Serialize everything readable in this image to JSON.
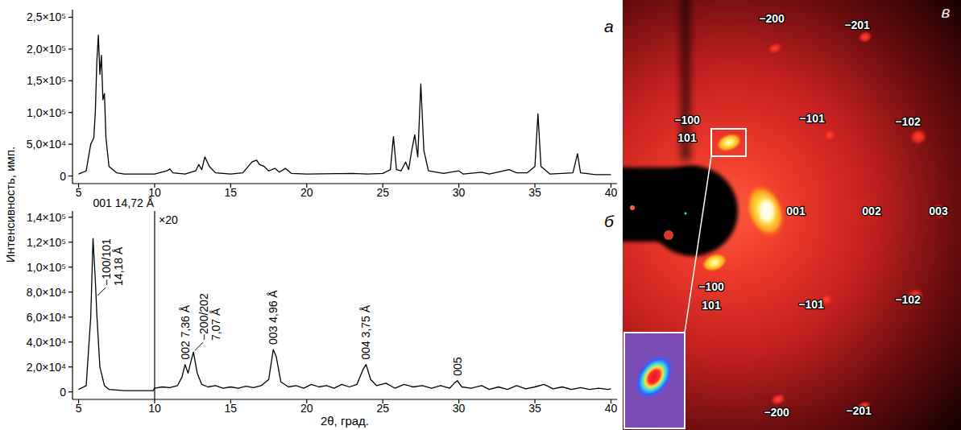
{
  "chart_data": [
    {
      "type": "line",
      "panel_label": "а",
      "color": "#000000",
      "x": [
        5.0,
        5.5,
        5.8,
        6.0,
        6.1,
        6.2,
        6.3,
        6.4,
        6.5,
        6.6,
        6.7,
        6.8,
        7.0,
        7.5,
        8.0,
        10.0,
        10.8,
        11.0,
        11.2,
        12.0,
        12.7,
        12.9,
        13.1,
        13.3,
        13.6,
        14.0,
        15.0,
        15.8,
        16.4,
        16.7,
        16.9,
        17.2,
        17.5,
        17.9,
        18.2,
        18.6,
        19.0,
        20.0,
        23.0,
        24.0,
        25.0,
        25.5,
        25.7,
        25.9,
        26.2,
        26.5,
        26.7,
        26.9,
        27.1,
        27.3,
        27.5,
        27.7,
        28.0,
        29.0,
        30.0,
        30.3,
        31.5,
        32.0,
        33.3,
        33.8,
        34.5,
        35.0,
        35.2,
        35.4,
        36.0,
        37.5,
        37.8,
        38.0,
        39.0,
        40.0
      ],
      "values": [
        3000,
        8000,
        50000,
        60000,
        100000,
        180000,
        222000,
        160000,
        190000,
        120000,
        130000,
        60000,
        15000,
        5000,
        3000,
        3000,
        8000,
        11000,
        5000,
        3000,
        8000,
        18000,
        10000,
        30000,
        15000,
        5000,
        3000,
        5000,
        22000,
        25000,
        18000,
        15000,
        8000,
        12000,
        6000,
        12000,
        4000,
        3000,
        4000,
        3000,
        4000,
        10000,
        62000,
        10000,
        8000,
        22000,
        10000,
        40000,
        65000,
        30000,
        145000,
        40000,
        8000,
        4000,
        8000,
        3000,
        6000,
        3000,
        10000,
        5000,
        5000,
        15000,
        98000,
        15000,
        3000,
        5000,
        35000,
        5000,
        2000,
        2000
      ],
      "xlim": [
        4.6,
        40.4
      ],
      "xticks": [
        5,
        10,
        15,
        20,
        25,
        30,
        35,
        40
      ],
      "ylim": [
        -12000,
        262000
      ],
      "yticks": [
        0,
        {
          "value": 50000,
          "label": "5,0×10⁴"
        },
        {
          "value": 100000,
          "label": "1,0×10⁵"
        },
        {
          "value": 150000,
          "label": "1,5×10⁵"
        },
        {
          "value": 200000,
          "label": "2,0×10⁵"
        },
        {
          "value": 250000,
          "label": "2,5×10⁵"
        }
      ]
    },
    {
      "type": "line",
      "panel_label": "б",
      "color": "#000000",
      "x_label": "2θ, град.",
      "x": [
        5.0,
        5.5,
        5.8,
        5.95,
        6.1,
        6.2,
        6.4,
        6.7,
        7.0,
        8.0,
        9.9,
        10.0,
        10.5,
        11.0,
        11.5,
        11.8,
        12.0,
        12.2,
        12.4,
        12.55,
        12.8,
        13.1,
        13.5,
        14.0,
        14.5,
        15.0,
        15.5,
        16.0,
        16.5,
        17.0,
        17.5,
        17.8,
        18.0,
        18.3,
        18.8,
        19.3,
        19.8,
        20.3,
        20.8,
        21.3,
        21.8,
        22.3,
        22.8,
        23.3,
        23.7,
        23.9,
        24.2,
        24.6,
        25.2,
        25.8,
        26.4,
        27.0,
        27.6,
        28.2,
        28.8,
        29.4,
        29.7,
        29.9,
        30.2,
        30.8,
        31.5,
        32.0,
        32.6,
        33.2,
        33.8,
        34.4,
        35.0,
        35.6,
        36.2,
        36.8,
        37.4,
        38.0,
        38.6,
        39.2,
        39.8,
        40.0
      ],
      "values": [
        2000,
        5000,
        60000,
        123000,
        90000,
        62000,
        20000,
        5000,
        2000,
        1000,
        1000,
        3000,
        4000,
        3500,
        5000,
        12000,
        22000,
        15000,
        25000,
        32000,
        15000,
        6000,
        4000,
        5000,
        3000,
        4000,
        3000,
        4500,
        3500,
        5000,
        10000,
        34000,
        28000,
        8000,
        4000,
        5000,
        3000,
        6000,
        4000,
        5000,
        3000,
        6000,
        4000,
        6000,
        18000,
        22000,
        10000,
        5000,
        7000,
        3000,
        6000,
        4000,
        5000,
        3000,
        5000,
        3000,
        7000,
        9000,
        4000,
        3000,
        5000,
        2000,
        4000,
        2000,
        5000,
        2500,
        4000,
        6000,
        2500,
        4000,
        2000,
        3500,
        2000,
        3000,
        2000,
        2500
      ],
      "xlim": [
        4.6,
        40.4
      ],
      "xticks": [
        5,
        10,
        15,
        20,
        25,
        30,
        35,
        40
      ],
      "ylim": [
        -6000,
        145000
      ],
      "yticks": [
        0,
        {
          "value": 20000,
          "label": "2,0×10⁴"
        },
        {
          "value": 40000,
          "label": "4,0×10⁴"
        },
        {
          "value": 60000,
          "label": "6,0×10⁴"
        },
        {
          "value": 80000,
          "label": "8,0×10⁴"
        },
        {
          "value": 100000,
          "label": "1,0×10⁵"
        },
        {
          "value": 120000,
          "label": "1,2×10⁵"
        },
        {
          "value": 140000,
          "label": "1,4×10⁵"
        }
      ],
      "scale_break": {
        "x": 10,
        "label": "×20"
      },
      "annotations": [
        {
          "text": "001 14,72 Å",
          "x": 5.95
        },
        {
          "lines": [
            "−100/101",
            "14,18 Å"
          ],
          "x": 6.15
        },
        {
          "text": "002 7,36 Å",
          "x": 12.0
        },
        {
          "lines": [
            "−200/202",
            "7,07 Å"
          ],
          "x": 12.55
        },
        {
          "text": "003 4,96 Å",
          "x": 17.8
        },
        {
          "text": "004 3,75 Å",
          "x": 23.9
        },
        {
          "text": "005",
          "x": 29.9
        }
      ]
    }
  ],
  "shared_y_label": "Интенсивность, имп.",
  "diffraction_image": {
    "panel_label": "в",
    "spot_labels": [
      "−200",
      "−201",
      "−100",
      "101",
      "−101",
      "−102",
      "001",
      "002",
      "003",
      "−100",
      "101",
      "−101",
      "−102",
      "−200",
      "−201"
    ]
  }
}
